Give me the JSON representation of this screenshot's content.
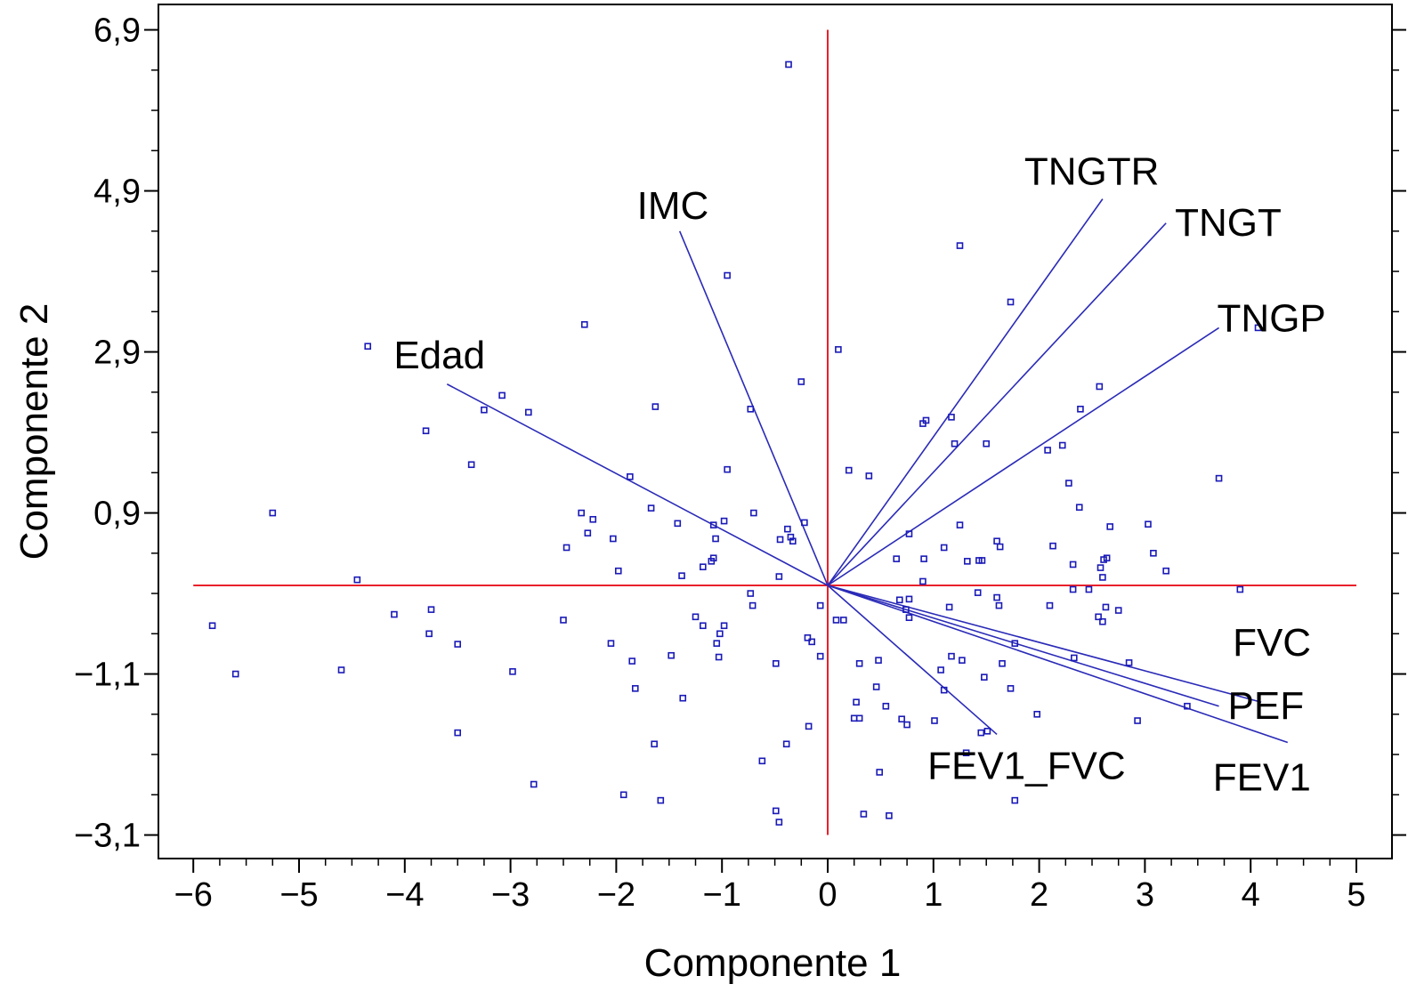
{
  "chart_data": {
    "type": "scatter",
    "subtype": "biplot",
    "title": "",
    "xlabel": "Componente 1",
    "ylabel": "Componente 2",
    "xlim": [
      -6,
      5
    ],
    "ylim": [
      -3.1,
      6.9
    ],
    "x_ticks": [
      -6,
      -5,
      -4,
      -3,
      -2,
      -1,
      0,
      1,
      2,
      3,
      4,
      5
    ],
    "x_tick_labels": [
      "−6",
      "−5",
      "−4",
      "−3",
      "−2",
      "−1",
      "0",
      "1",
      "2",
      "3",
      "4",
      "5"
    ],
    "y_ticks": [
      -3.1,
      -1.1,
      0.9,
      2.9,
      4.9,
      6.9
    ],
    "y_tick_labels": [
      "−3,1",
      "−1,1",
      "0,9",
      "2,9",
      "4,9",
      "6,9"
    ],
    "grid": false,
    "reference_lines": {
      "x": 0,
      "y": 0,
      "color": "#e8202a"
    },
    "colors": {
      "points": "#1a1ab8",
      "vectors": "#2a2ab8",
      "reference": "#e8202a",
      "frame": "#000000"
    },
    "vectors": [
      {
        "name": "Edad",
        "x": -3.6,
        "y": 2.5
      },
      {
        "name": "IMC",
        "x": -1.4,
        "y": 4.4
      },
      {
        "name": "TNGTR",
        "x": 2.6,
        "y": 4.8
      },
      {
        "name": "TNGT",
        "x": 3.2,
        "y": 4.5
      },
      {
        "name": "TNGP",
        "x": 3.7,
        "y": 3.2
      },
      {
        "name": "FVC",
        "x": 4.1,
        "y": -1.45
      },
      {
        "name": "PEF",
        "x": 3.7,
        "y": -1.5
      },
      {
        "name": "FEV1",
        "x": 4.35,
        "y": -1.95
      },
      {
        "name": "FEV1_FVC",
        "x": 1.6,
        "y": -1.85
      }
    ],
    "points": [
      [
        -0.37,
        6.47
      ],
      [
        1.25,
        4.22
      ],
      [
        -0.95,
        3.85
      ],
      [
        1.73,
        3.52
      ],
      [
        4.07,
        3.2
      ],
      [
        -2.3,
        3.24
      ],
      [
        -4.35,
        2.97
      ],
      [
        0.1,
        2.93
      ],
      [
        -0.25,
        2.53
      ],
      [
        2.57,
        2.47
      ],
      [
        -3.08,
        2.36
      ],
      [
        -3.25,
        2.18
      ],
      [
        -2.83,
        2.15
      ],
      [
        -1.63,
        2.22
      ],
      [
        -0.73,
        2.19
      ],
      [
        2.39,
        2.19
      ],
      [
        0.9,
        2.01
      ],
      [
        0.93,
        2.05
      ],
      [
        1.17,
        2.09
      ],
      [
        -3.8,
        1.92
      ],
      [
        1.2,
        1.76
      ],
      [
        1.5,
        1.76
      ],
      [
        2.22,
        1.74
      ],
      [
        2.08,
        1.68
      ],
      [
        -3.37,
        1.5
      ],
      [
        -0.95,
        1.44
      ],
      [
        0.2,
        1.43
      ],
      [
        0.39,
        1.36
      ],
      [
        3.7,
        1.33
      ],
      [
        -1.87,
        1.35
      ],
      [
        2.28,
        1.27
      ],
      [
        -5.25,
        0.9
      ],
      [
        -1.67,
        0.96
      ],
      [
        -2.33,
        0.9
      ],
      [
        -0.7,
        0.9
      ],
      [
        -2.22,
        0.82
      ],
      [
        2.38,
        0.97
      ],
      [
        -1.42,
        0.77
      ],
      [
        -1.08,
        0.75
      ],
      [
        -0.98,
        0.8
      ],
      [
        -0.22,
        0.78
      ],
      [
        -0.38,
        0.7
      ],
      [
        0.77,
        0.64
      ],
      [
        -2.27,
        0.65
      ],
      [
        -2.03,
        0.58
      ],
      [
        1.25,
        0.75
      ],
      [
        1.6,
        0.55
      ],
      [
        3.03,
        0.76
      ],
      [
        2.67,
        0.73
      ],
      [
        -1.06,
        0.58
      ],
      [
        -0.45,
        0.57
      ],
      [
        -0.35,
        0.6
      ],
      [
        -0.33,
        0.55
      ],
      [
        -2.47,
        0.47
      ],
      [
        1.1,
        0.47
      ],
      [
        1.63,
        0.48
      ],
      [
        2.13,
        0.49
      ],
      [
        3.08,
        0.4
      ],
      [
        -1.08,
        0.34
      ],
      [
        -1.1,
        0.3
      ],
      [
        0.65,
        0.33
      ],
      [
        0.91,
        0.33
      ],
      [
        1.32,
        0.3
      ],
      [
        1.43,
        0.31
      ],
      [
        1.46,
        0.31
      ],
      [
        2.61,
        0.32
      ],
      [
        2.64,
        0.34
      ],
      [
        2.32,
        0.26
      ],
      [
        -1.18,
        0.23
      ],
      [
        2.58,
        0.22
      ],
      [
        3.2,
        0.18
      ],
      [
        -1.98,
        0.18
      ],
      [
        -1.38,
        0.12
      ],
      [
        -0.46,
        0.11
      ],
      [
        2.6,
        0.1
      ],
      [
        -4.45,
        0.07
      ],
      [
        0.9,
        0.05
      ],
      [
        3.9,
        -0.05
      ],
      [
        -0.73,
        -0.1
      ],
      [
        2.32,
        -0.05
      ],
      [
        2.47,
        -0.05
      ],
      [
        1.42,
        -0.09
      ],
      [
        -0.71,
        -0.25
      ],
      [
        0.68,
        -0.18
      ],
      [
        0.77,
        -0.17
      ],
      [
        0.74,
        -0.3
      ],
      [
        1.6,
        -0.15
      ],
      [
        -0.07,
        -0.25
      ],
      [
        -4.1,
        -0.36
      ],
      [
        -3.75,
        -0.3
      ],
      [
        2.1,
        -0.25
      ],
      [
        2.63,
        -0.27
      ],
      [
        2.56,
        -0.39
      ],
      [
        1.15,
        -0.27
      ],
      [
        1.62,
        -0.25
      ],
      [
        2.6,
        -0.45
      ],
      [
        2.75,
        -0.31
      ],
      [
        0.08,
        -0.43
      ],
      [
        0.15,
        -0.43
      ],
      [
        -1.25,
        -0.39
      ],
      [
        -1.18,
        -0.5
      ],
      [
        -0.98,
        -0.5
      ],
      [
        -2.5,
        -0.43
      ],
      [
        -3.77,
        -0.6
      ],
      [
        0.77,
        -0.4
      ],
      [
        -1.02,
        -0.6
      ],
      [
        -0.19,
        -0.65
      ],
      [
        -0.15,
        -0.7
      ],
      [
        -2.05,
        -0.72
      ],
      [
        -1.05,
        -0.72
      ],
      [
        -3.5,
        -0.73
      ],
      [
        -1.03,
        -0.89
      ],
      [
        -1.48,
        -0.87
      ],
      [
        -0.07,
        -0.88
      ],
      [
        1.77,
        -0.72
      ],
      [
        1.17,
        -0.88
      ],
      [
        1.27,
        -0.93
      ],
      [
        0.48,
        -0.93
      ],
      [
        0.3,
        -0.97
      ],
      [
        2.33,
        -0.9
      ],
      [
        2.85,
        -0.96
      ],
      [
        1.07,
        -1.05
      ],
      [
        -1.85,
        -0.94
      ],
      [
        -0.49,
        -0.97
      ],
      [
        1.65,
        -0.97
      ],
      [
        -4.6,
        -1.05
      ],
      [
        -5.6,
        -1.1
      ],
      [
        -2.98,
        -1.07
      ],
      [
        1.48,
        -1.14
      ],
      [
        0.46,
        -1.26
      ],
      [
        -1.82,
        -1.28
      ],
      [
        1.73,
        -1.28
      ],
      [
        -1.37,
        -1.4
      ],
      [
        0.27,
        -1.45
      ],
      [
        0.55,
        -1.5
      ],
      [
        1.1,
        -1.3
      ],
      [
        1.98,
        -1.6
      ],
      [
        3.4,
        -1.5
      ],
      [
        0.25,
        -1.65
      ],
      [
        0.3,
        -1.65
      ],
      [
        0.7,
        -1.66
      ],
      [
        0.75,
        -1.73
      ],
      [
        1.01,
        -1.68
      ],
      [
        2.93,
        -1.68
      ],
      [
        -5.82,
        -0.5
      ],
      [
        -3.5,
        -1.83
      ],
      [
        -0.18,
        -1.75
      ],
      [
        1.45,
        -1.83
      ],
      [
        1.51,
        -1.81
      ],
      [
        -0.39,
        -1.97
      ],
      [
        -1.64,
        -1.97
      ],
      [
        1.31,
        -2.08
      ],
      [
        -0.62,
        -2.18
      ],
      [
        0.49,
        -2.32
      ],
      [
        -2.78,
        -2.47
      ],
      [
        -1.93,
        -2.6
      ],
      [
        -1.58,
        -2.67
      ],
      [
        1.77,
        -2.67
      ],
      [
        -0.49,
        -2.8
      ],
      [
        0.34,
        -2.84
      ],
      [
        0.58,
        -2.86
      ],
      [
        -0.46,
        -2.94
      ]
    ]
  }
}
